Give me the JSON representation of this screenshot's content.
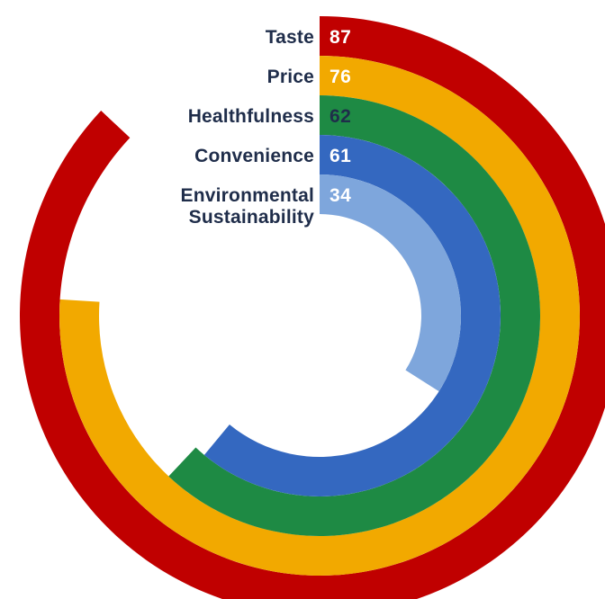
{
  "chart_data": {
    "type": "radial-bar",
    "max_value": 100,
    "series": [
      {
        "label": [
          "Taste"
        ],
        "value": 87,
        "color": "#c00000",
        "value_text_color": "#ffffff"
      },
      {
        "label": [
          "Price"
        ],
        "value": 76,
        "color": "#f2a900",
        "value_text_color": "#ffffff"
      },
      {
        "label": [
          "Healthfulness"
        ],
        "value": 62,
        "color": "#1e8a44",
        "value_text_color": "#1f2d4a"
      },
      {
        "label": [
          "Convenience"
        ],
        "value": 61,
        "color": "#3468c0",
        "value_text_color": "#ffffff"
      },
      {
        "label": [
          "Environmental",
          "Sustainability"
        ],
        "value": 34,
        "color": "#7ea6dc",
        "value_text_color": "#ffffff"
      }
    ]
  }
}
